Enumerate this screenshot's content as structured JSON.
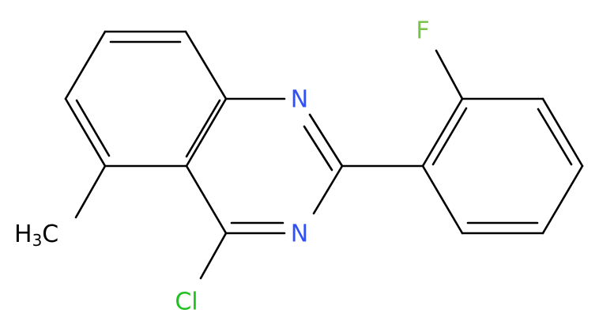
{
  "atoms": {
    "n1": "N",
    "n3": "N",
    "f": "F",
    "cl": "Cl",
    "methyl": {
      "h": "H",
      "count": "3",
      "c": "C"
    }
  }
}
